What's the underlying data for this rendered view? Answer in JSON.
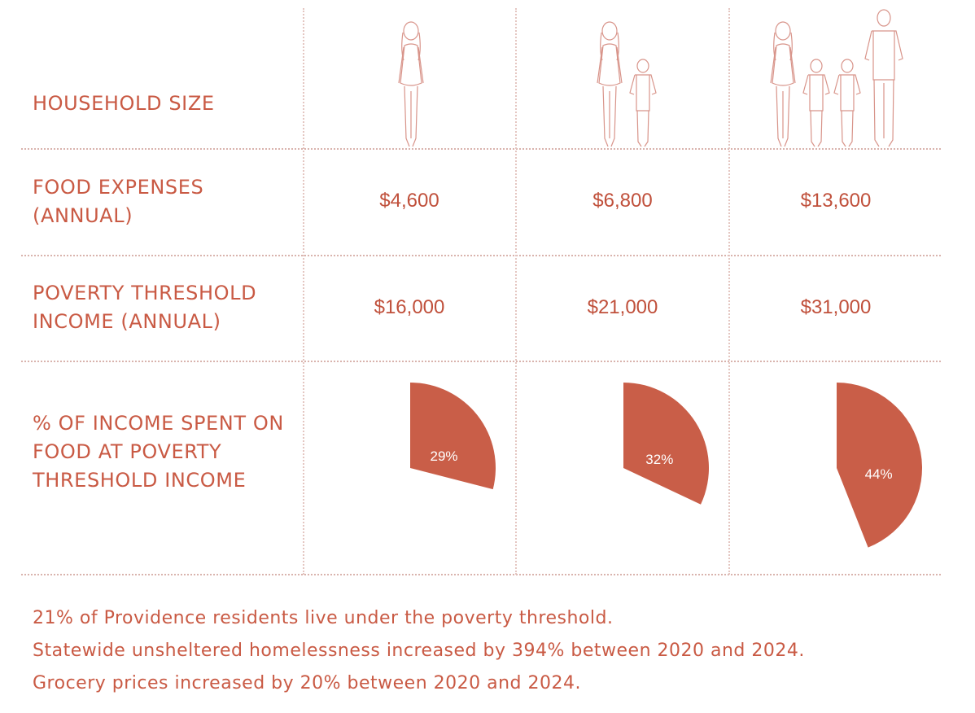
{
  "table": {
    "row_labels": {
      "household_size": "HOUSEHOLD SIZE",
      "food_expenses": "FOOD EXPENSES\n(ANNUAL)",
      "poverty_threshold": "POVERTY THRESHOLD\nINCOME (ANNUAL)",
      "percent_income": "% OF INCOME SPENT ON\nFOOD AT POVERTY\nTHRESHOLD INCOME"
    },
    "columns": [
      {
        "household": "adult",
        "food_expenses": "$4,600",
        "poverty_threshold": "$16,000",
        "percent_label": "29%"
      },
      {
        "household": "adult + child",
        "food_expenses": "$6,800",
        "poverty_threshold": "$21,000",
        "percent_label": "32%"
      },
      {
        "household": "two adults + two children",
        "food_expenses": "$13,600",
        "poverty_threshold": "$31,000",
        "percent_label": "44%"
      }
    ]
  },
  "chart_data": {
    "type": "pie",
    "title": "% OF INCOME SPENT ON FOOD AT POVERTY THRESHOLD INCOME",
    "categories": [
      "adult",
      "adult + child",
      "two adults + two children"
    ],
    "values": [
      29,
      32,
      44
    ],
    "labels": [
      "29%",
      "32%",
      "44%"
    ],
    "unit": "%",
    "color": "#c95e48"
  },
  "footnotes": [
    "21% of Providence residents live under the poverty threshold.",
    "Statewide unsheltered homelessness increased by 394% between 2020 and 2024.",
    "Grocery prices increased by 20% between 2020 and 2024."
  ],
  "colors": {
    "accent": "#c95a44",
    "pie_fill": "#c95e48",
    "rule": "#d9b3ad",
    "figure_stroke": "#d8948a"
  }
}
